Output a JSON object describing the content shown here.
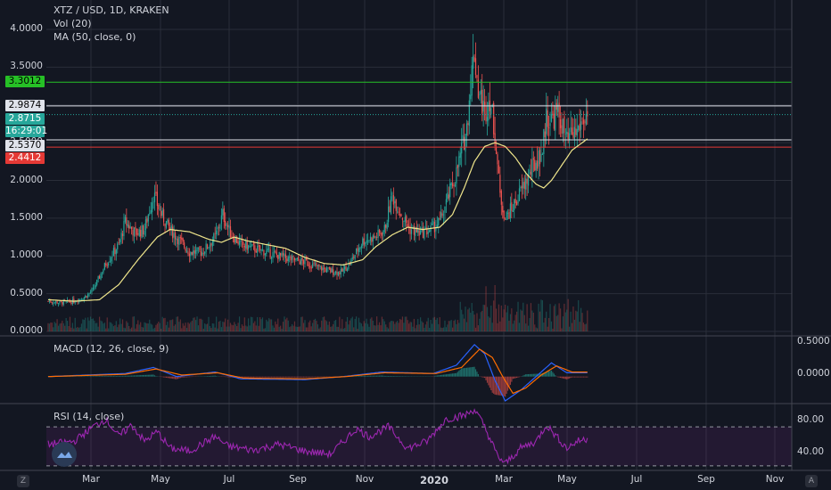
{
  "header": {
    "symbol_line": "XTZ / USD, 1D, KRAKEN",
    "vol_line": "Vol (20)",
    "ma_line": "MA (50, close, 0)"
  },
  "macd": {
    "label": "MACD (12, 26, close, 9)",
    "axis_labels": [
      "0.5000",
      "0.0000"
    ]
  },
  "rsi": {
    "label": "RSI (14, close)",
    "axis_labels": [
      "80.00",
      "40.00"
    ]
  },
  "corner": {
    "left": "Z",
    "right": "A"
  },
  "colors": {
    "background": "#131722",
    "up": "#26a69a",
    "down": "#ef5350",
    "ma": "#f0e68c",
    "macd": "#2962ff",
    "signal": "#ff6d00",
    "rsi": "#9c27b0",
    "green_line": "#26c026",
    "red_line": "#e53935"
  },
  "chart_data": [
    {
      "type": "candlestick",
      "title": "XTZ / USD, 1D, KRAKEN",
      "ylim": [
        0,
        4.2
      ],
      "y_tick_labels": [
        "4.0000",
        "3.5000",
        "3.0000",
        "2.5000",
        "2.0000",
        "1.5000",
        "1.0000",
        "0.5000",
        "0.0000"
      ],
      "x_tick_labels": [
        "Mar",
        "May",
        "Jul",
        "Sep",
        "Nov",
        "2020",
        "Mar",
        "May",
        "Jul",
        "Sep",
        "Nov"
      ],
      "price_tags": [
        {
          "text": "3.3012",
          "style": "green"
        },
        {
          "text": "2.9874",
          "style": "white"
        },
        {
          "text": "2.8715",
          "style": "teal"
        },
        {
          "text": "16:29:01",
          "style": "teal"
        },
        {
          "text": "2.5370",
          "style": "white"
        },
        {
          "text": "2.4412",
          "style": "red"
        }
      ],
      "horizontal_lines": [
        {
          "y": 3.3012,
          "color": "green"
        },
        {
          "y": 2.9874,
          "color": "white"
        },
        {
          "y": 2.8715,
          "color": "teal-dotted"
        },
        {
          "y": 2.537,
          "color": "white"
        },
        {
          "y": 2.4412,
          "color": "red"
        }
      ],
      "close_anchors": [
        [
          0,
          0.4
        ],
        [
          10,
          0.38
        ],
        [
          20,
          0.4
        ],
        [
          28,
          0.45
        ],
        [
          35,
          0.55
        ],
        [
          45,
          0.9
        ],
        [
          55,
          1.15
        ],
        [
          60,
          1.45
        ],
        [
          68,
          1.3
        ],
        [
          75,
          1.35
        ],
        [
          82,
          1.82
        ],
        [
          88,
          1.55
        ],
        [
          95,
          1.35
        ],
        [
          100,
          1.25
        ],
        [
          110,
          1.05
        ],
        [
          120,
          1.05
        ],
        [
          130,
          1.25
        ],
        [
          136,
          1.55
        ],
        [
          142,
          1.3
        ],
        [
          150,
          1.15
        ],
        [
          160,
          1.1
        ],
        [
          170,
          1.05
        ],
        [
          180,
          1.0
        ],
        [
          190,
          0.95
        ],
        [
          200,
          0.92
        ],
        [
          210,
          0.85
        ],
        [
          220,
          0.8
        ],
        [
          228,
          0.78
        ],
        [
          235,
          0.9
        ],
        [
          245,
          1.2
        ],
        [
          255,
          1.25
        ],
        [
          262,
          1.35
        ],
        [
          268,
          1.8
        ],
        [
          275,
          1.55
        ],
        [
          282,
          1.35
        ],
        [
          290,
          1.3
        ],
        [
          298,
          1.35
        ],
        [
          305,
          1.45
        ],
        [
          312,
          1.8
        ],
        [
          318,
          2.1
        ],
        [
          322,
          2.4
        ],
        [
          326,
          2.7
        ],
        [
          329,
          3.3
        ],
        [
          332,
          3.7
        ],
        [
          335,
          3.2
        ],
        [
          340,
          2.9
        ],
        [
          344,
          3.1
        ],
        [
          348,
          2.6
        ],
        [
          352,
          1.8
        ],
        [
          356,
          1.5
        ],
        [
          362,
          1.65
        ],
        [
          368,
          1.85
        ],
        [
          374,
          2.05
        ],
        [
          380,
          2.25
        ],
        [
          385,
          2.4
        ],
        [
          388,
          2.85
        ],
        [
          392,
          2.8
        ],
        [
          396,
          2.9
        ],
        [
          400,
          2.75
        ],
        [
          404,
          2.5
        ],
        [
          408,
          2.6
        ],
        [
          412,
          2.65
        ],
        [
          416,
          2.8
        ],
        [
          420,
          2.85
        ]
      ],
      "ma_anchors": [
        [
          0,
          0.42
        ],
        [
          20,
          0.4
        ],
        [
          40,
          0.42
        ],
        [
          55,
          0.62
        ],
        [
          70,
          0.95
        ],
        [
          85,
          1.25
        ],
        [
          95,
          1.35
        ],
        [
          110,
          1.32
        ],
        [
          125,
          1.22
        ],
        [
          135,
          1.18
        ],
        [
          145,
          1.25
        ],
        [
          155,
          1.2
        ],
        [
          170,
          1.15
        ],
        [
          185,
          1.1
        ],
        [
          200,
          0.98
        ],
        [
          215,
          0.9
        ],
        [
          230,
          0.88
        ],
        [
          245,
          0.95
        ],
        [
          255,
          1.12
        ],
        [
          268,
          1.28
        ],
        [
          280,
          1.38
        ],
        [
          292,
          1.35
        ],
        [
          305,
          1.38
        ],
        [
          315,
          1.55
        ],
        [
          324,
          1.9
        ],
        [
          332,
          2.25
        ],
        [
          340,
          2.45
        ],
        [
          348,
          2.5
        ],
        [
          356,
          2.45
        ],
        [
          364,
          2.3
        ],
        [
          372,
          2.1
        ],
        [
          380,
          1.95
        ],
        [
          386,
          1.9
        ],
        [
          392,
          2.0
        ],
        [
          400,
          2.2
        ],
        [
          408,
          2.4
        ],
        [
          416,
          2.5
        ],
        [
          420,
          2.55
        ]
      ]
    },
    {
      "type": "line",
      "title": "MACD (12, 26, close, 9)",
      "ylim": [
        -0.32,
        0.5
      ],
      "series": [
        {
          "values": [
            [
              0,
              0
            ],
            [
              60,
              0.04
            ],
            [
              82,
              0.12
            ],
            [
              100,
              0.0
            ],
            [
              130,
              0.06
            ],
            [
              150,
              -0.03
            ],
            [
              200,
              -0.04
            ],
            [
              230,
              0.0
            ],
            [
              260,
              0.06
            ],
            [
              300,
              0.04
            ],
            [
              318,
              0.15
            ],
            [
              332,
              0.42
            ],
            [
              340,
              0.3
            ],
            [
              348,
              -0.05
            ],
            [
              356,
              -0.32
            ],
            [
              368,
              -0.18
            ],
            [
              380,
              0.0
            ],
            [
              392,
              0.18
            ],
            [
              404,
              0.05
            ],
            [
              420,
              0.05
            ]
          ]
        },
        {
          "values": [
            [
              0,
              0
            ],
            [
              60,
              0.03
            ],
            [
              84,
              0.1
            ],
            [
              104,
              0.02
            ],
            [
              132,
              0.05
            ],
            [
              152,
              -0.02
            ],
            [
              200,
              -0.03
            ],
            [
              232,
              0.0
            ],
            [
              262,
              0.05
            ],
            [
              302,
              0.04
            ],
            [
              322,
              0.12
            ],
            [
              336,
              0.36
            ],
            [
              346,
              0.25
            ],
            [
              354,
              0.0
            ],
            [
              362,
              -0.22
            ],
            [
              372,
              -0.15
            ],
            [
              384,
              0.02
            ],
            [
              396,
              0.14
            ],
            [
              408,
              0.06
            ],
            [
              420,
              0.06
            ]
          ]
        }
      ]
    },
    {
      "type": "line",
      "title": "RSI (14, close)",
      "ylim": [
        28,
        92
      ],
      "series": [
        {
          "values": [
            [
              0,
              52
            ],
            [
              20,
              55
            ],
            [
              35,
              70
            ],
            [
              45,
              78
            ],
            [
              55,
              60
            ],
            [
              65,
              72
            ],
            [
              75,
              55
            ],
            [
              85,
              65
            ],
            [
              95,
              48
            ],
            [
              110,
              45
            ],
            [
              130,
              60
            ],
            [
              140,
              50
            ],
            [
              160,
              46
            ],
            [
              180,
              52
            ],
            [
              200,
              45
            ],
            [
              220,
              42
            ],
            [
              240,
              68
            ],
            [
              250,
              60
            ],
            [
              265,
              70
            ],
            [
              280,
              48
            ],
            [
              295,
              55
            ],
            [
              310,
              78
            ],
            [
              325,
              82
            ],
            [
              332,
              88
            ],
            [
              340,
              70
            ],
            [
              350,
              40
            ],
            [
              356,
              32
            ],
            [
              368,
              48
            ],
            [
              380,
              55
            ],
            [
              388,
              72
            ],
            [
              396,
              60
            ],
            [
              404,
              48
            ],
            [
              412,
              55
            ],
            [
              420,
              58
            ]
          ]
        }
      ]
    }
  ]
}
